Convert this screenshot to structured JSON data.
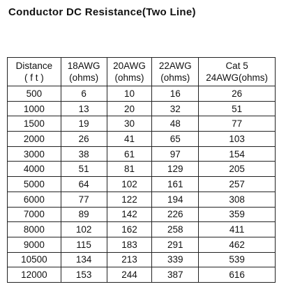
{
  "title": "Conductor DC Resistance(Two Line)",
  "table": {
    "header": [
      [
        "Distance",
        "( f t )"
      ],
      [
        "18AWG",
        "(ohms)"
      ],
      [
        "20AWG",
        "(ohms)"
      ],
      [
        "22AWG",
        "(ohms)"
      ],
      [
        "Cat 5",
        "24AWG(ohms)"
      ]
    ],
    "rows": [
      [
        500,
        6,
        10,
        16,
        26
      ],
      [
        1000,
        13,
        20,
        32,
        51
      ],
      [
        1500,
        19,
        30,
        48,
        77
      ],
      [
        2000,
        26,
        41,
        65,
        103
      ],
      [
        3000,
        38,
        61,
        97,
        154
      ],
      [
        4000,
        51,
        81,
        129,
        205
      ],
      [
        5000,
        64,
        102,
        161,
        257
      ],
      [
        6000,
        77,
        122,
        194,
        308
      ],
      [
        7000,
        89,
        142,
        226,
        359
      ],
      [
        8000,
        102,
        162,
        258,
        411
      ],
      [
        9000,
        115,
        183,
        291,
        462
      ],
      [
        10500,
        134,
        213,
        339,
        539
      ],
      [
        12000,
        153,
        244,
        387,
        616
      ]
    ]
  }
}
